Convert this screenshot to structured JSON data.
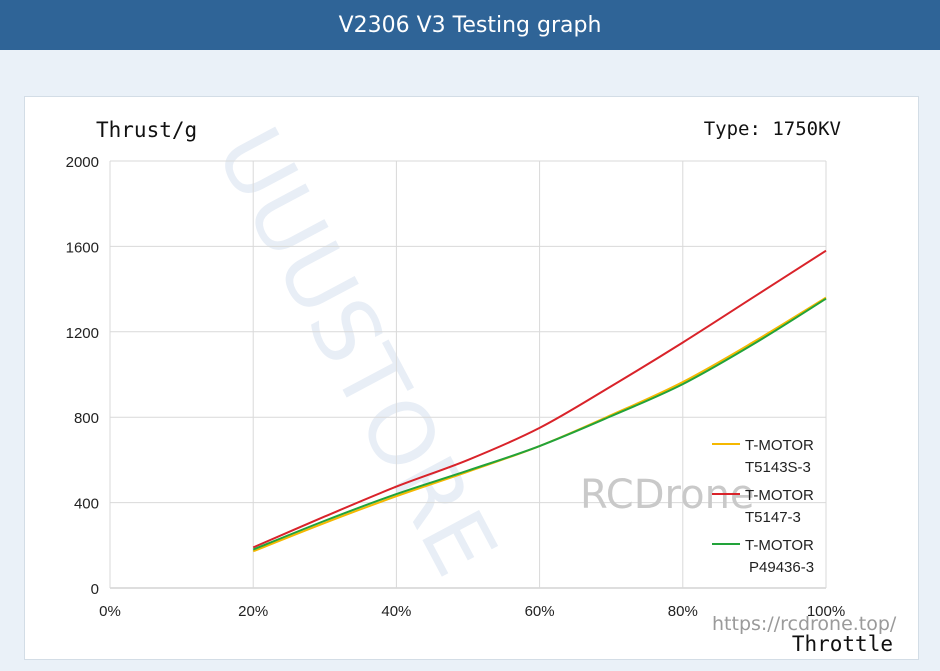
{
  "header": {
    "title": "V2306 V3 Testing graph"
  },
  "chart_data": {
    "type": "line",
    "xlabel": "Throttle",
    "ylabel": "Thrust/g",
    "annotation": "Type: 1750KV",
    "x": [
      20,
      30,
      40,
      50,
      60,
      70,
      80,
      90,
      100
    ],
    "x_tick_labels": [
      "0%",
      "20%",
      "40%",
      "60%",
      "80%",
      "100%"
    ],
    "x_tick_values": [
      0,
      20,
      40,
      60,
      80,
      100
    ],
    "xlim": [
      0,
      100
    ],
    "y_tick_values": [
      0,
      400,
      800,
      1200,
      1600,
      2000
    ],
    "ylim": [
      0,
      2000
    ],
    "grid": true,
    "legend_position": "right",
    "series": [
      {
        "name": "T-MOTOR T5143S-3",
        "legend_lines": [
          "T-MOTOR",
          "T5143S-3"
        ],
        "color": "#f5b800",
        "values": [
          172,
          305,
          430,
          545,
          665,
          810,
          965,
          1155,
          1360
        ]
      },
      {
        "name": "T-MOTOR T5147-3",
        "legend_lines": [
          "T-MOTOR",
          "T5147-3"
        ],
        "color": "#d9232a",
        "values": [
          190,
          335,
          475,
          600,
          750,
          945,
          1150,
          1365,
          1580
        ]
      },
      {
        "name": "T-MOTOR P49436-3",
        "legend_lines": [
          "T-MOTOR",
          "P49436-3"
        ],
        "color": "#22a33a",
        "values": [
          180,
          315,
          440,
          550,
          665,
          805,
          955,
          1145,
          1355
        ]
      }
    ]
  },
  "watermarks": {
    "brand": "RCDrone",
    "url": "https://rcdrone.top/",
    "faint": "UUUSTORE"
  }
}
